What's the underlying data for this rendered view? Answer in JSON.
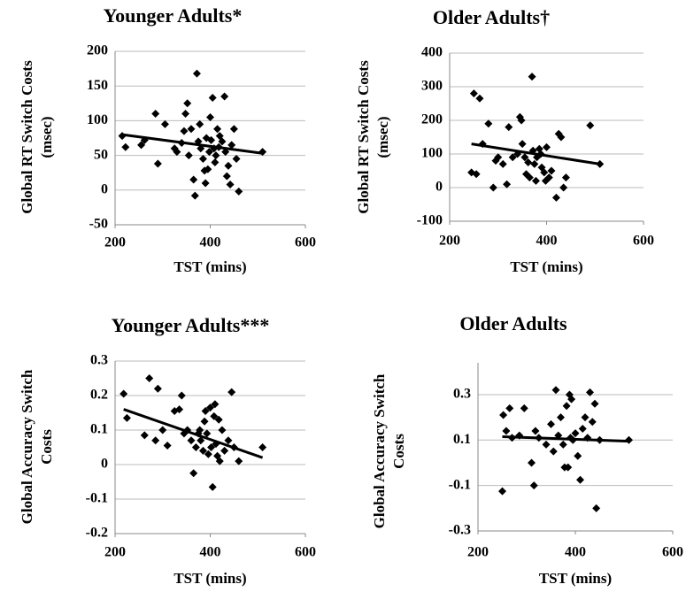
{
  "chart_data": [
    {
      "type": "scatter",
      "title": "Younger Adults*",
      "xlabel": "TST (mins)",
      "ylabel": [
        "Global RT Switch Costs",
        "(msec)"
      ],
      "xlim": [
        200,
        600
      ],
      "xticks": [
        200,
        400,
        600
      ],
      "ylim": [
        -50,
        200
      ],
      "yticks": [
        200,
        150,
        100,
        50,
        0,
        -50
      ],
      "grid": true,
      "color": "#000000",
      "x": [
        215,
        222,
        255,
        262,
        285,
        290,
        305,
        325,
        330,
        340,
        345,
        348,
        352,
        355,
        360,
        365,
        368,
        372,
        375,
        378,
        380,
        385,
        388,
        390,
        392,
        395,
        398,
        400,
        402,
        405,
        408,
        410,
        412,
        415,
        418,
        420,
        425,
        430,
        432,
        435,
        438,
        442,
        445,
        450,
        455,
        460,
        510
      ],
      "y": [
        78,
        62,
        65,
        72,
        110,
        38,
        95,
        60,
        55,
        68,
        85,
        110,
        125,
        50,
        88,
        15,
        -8,
        168,
        70,
        95,
        60,
        45,
        28,
        10,
        75,
        30,
        55,
        105,
        72,
        133,
        60,
        40,
        50,
        88,
        62,
        78,
        70,
        135,
        55,
        20,
        35,
        8,
        65,
        88,
        45,
        -2,
        55
      ],
      "trendline": {
        "x": [
          215,
          510
        ],
        "y": [
          80,
          53
        ]
      }
    },
    {
      "type": "scatter",
      "title": "Older Adults†",
      "xlabel": "TST (mins)",
      "ylabel": [
        "Global RT Switch Costs",
        "(msec)"
      ],
      "xlim": [
        200,
        600
      ],
      "xticks": [
        200,
        400,
        600
      ],
      "ylim": [
        -100,
        400
      ],
      "yticks": [
        400,
        300,
        200,
        100,
        0,
        -100
      ],
      "grid": true,
      "color": "#000000",
      "x": [
        245,
        250,
        255,
        262,
        268,
        280,
        290,
        295,
        300,
        310,
        318,
        322,
        330,
        340,
        345,
        348,
        350,
        355,
        358,
        362,
        365,
        370,
        372,
        375,
        378,
        380,
        385,
        388,
        390,
        395,
        398,
        400,
        405,
        410,
        420,
        425,
        430,
        435,
        440,
        490,
        510
      ],
      "y": [
        45,
        280,
        40,
        265,
        130,
        190,
        0,
        80,
        90,
        70,
        10,
        180,
        90,
        100,
        210,
        200,
        130,
        90,
        40,
        75,
        30,
        330,
        110,
        70,
        20,
        90,
        115,
        100,
        60,
        45,
        20,
        120,
        30,
        50,
        -30,
        160,
        150,
        0,
        30,
        185,
        70
      ],
      "trendline": {
        "x": [
          245,
          510
        ],
        "y": [
          130,
          70
        ]
      }
    },
    {
      "type": "scatter",
      "title": "Younger Adults***",
      "xlabel": "TST (mins)",
      "ylabel": [
        "Global Accuracy Switch",
        "Costs"
      ],
      "xlim": [
        200,
        600
      ],
      "xticks": [
        200,
        400,
        600
      ],
      "ylim": [
        -0.2,
        0.3
      ],
      "yticks": [
        0.3,
        0.2,
        0.1,
        0,
        -0.1,
        -0.2
      ],
      "grid": true,
      "color": "#000000",
      "x": [
        218,
        225,
        262,
        272,
        285,
        290,
        300,
        310,
        325,
        335,
        340,
        345,
        352,
        360,
        365,
        370,
        375,
        378,
        380,
        385,
        388,
        390,
        393,
        396,
        400,
        402,
        405,
        408,
        410,
        412,
        415,
        418,
        420,
        425,
        430,
        438,
        445,
        450,
        460,
        510
      ],
      "y": [
        0.205,
        0.135,
        0.085,
        0.25,
        0.07,
        0.22,
        0.1,
        0.055,
        0.155,
        0.16,
        0.2,
        0.09,
        0.1,
        0.07,
        -0.025,
        0.05,
        0.09,
        0.1,
        0.07,
        0.04,
        0.125,
        0.155,
        0.09,
        0.03,
        0.165,
        0.05,
        -0.065,
        0.14,
        0.175,
        0.06,
        0.025,
        0.13,
        0.01,
        0.1,
        0.04,
        0.07,
        0.21,
        0.05,
        0.01,
        0.05
      ],
      "trendline": {
        "x": [
          218,
          510
        ],
        "y": [
          0.16,
          0.02
        ]
      }
    },
    {
      "type": "scatter",
      "title": "Older Adults",
      "xlabel": "TST (mins)",
      "ylabel": [
        "Global Accuracy Switch",
        "Costs"
      ],
      "xlim": [
        200,
        600
      ],
      "xticks": [
        200,
        400,
        600
      ],
      "ylim": [
        -0.3,
        0.44
      ],
      "yticks": [
        0.3,
        0.1,
        -0.1,
        -0.3
      ],
      "grid": true,
      "color": "#000000",
      "x": [
        250,
        252,
        258,
        265,
        270,
        285,
        295,
        310,
        315,
        318,
        325,
        340,
        350,
        355,
        360,
        365,
        370,
        375,
        378,
        382,
        385,
        388,
        390,
        392,
        395,
        400,
        405,
        410,
        415,
        420,
        425,
        430,
        435,
        440,
        443,
        450,
        510
      ],
      "y": [
        -0.125,
        0.21,
        0.14,
        0.24,
        0.11,
        0.12,
        0.24,
        0,
        -0.1,
        0.14,
        0.11,
        0.08,
        0.17,
        0.05,
        0.32,
        0.12,
        0.2,
        0.08,
        -0.02,
        0.25,
        -0.02,
        0.3,
        0.11,
        0.28,
        0.1,
        0.13,
        0.03,
        -0.075,
        0.15,
        0.2,
        0.11,
        0.31,
        0.18,
        0.26,
        -0.2,
        0.1,
        0.1
      ],
      "trendline": {
        "x": [
          250,
          510
        ],
        "y": [
          0.115,
          0.095
        ]
      }
    }
  ]
}
